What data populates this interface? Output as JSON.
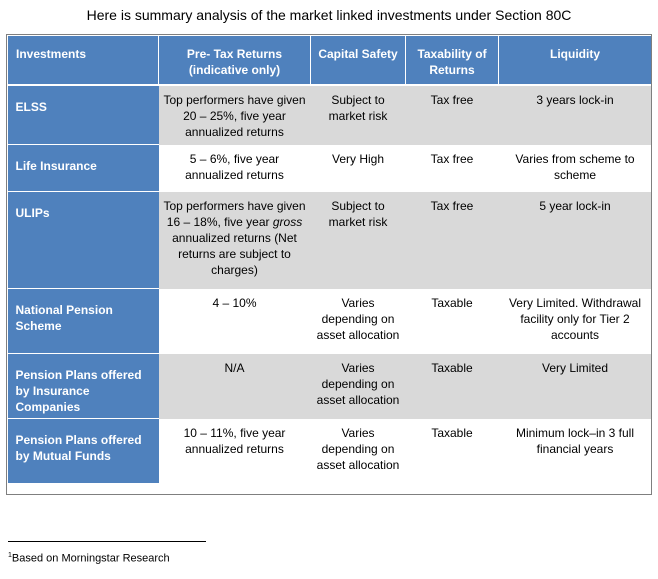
{
  "title": "Here is summary analysis of the market linked investments under Section 80C",
  "headers": {
    "investments": "Investments",
    "returns": "Pre- Tax Returns (indicative only)",
    "safety": "Capital Safety",
    "taxability": "Taxability of Returns",
    "liquidity": "Liquidity"
  },
  "rows": [
    {
      "name": "ELSS",
      "returns": "Top performers have given 20 – 25%, five year annualized returns",
      "safety": "Subject to market risk",
      "tax": "Tax free",
      "liquidity": "3 years lock-in"
    },
    {
      "name": "Life Insurance",
      "returns": "5 – 6%, five year annualized returns",
      "safety": "Very High",
      "tax": "Tax free",
      "liquidity": "Varies from scheme to scheme"
    },
    {
      "name": "ULIPs",
      "returns_a": "Top performers have given 16 – 18%, five year ",
      "returns_italic": "gross",
      "returns_b": " annualized returns (Net returns are subject to charges)",
      "safety": "Subject to market risk",
      "tax": "Tax free",
      "liquidity": "5 year lock-in"
    },
    {
      "name": "National Pension Scheme",
      "returns": "4 – 10%",
      "safety": "Varies depending on asset allocation",
      "tax": "Taxable",
      "liquidity": "Very Limited. Withdrawal facility only for Tier 2 accounts"
    },
    {
      "name": "Pension Plans offered by Insurance Companies",
      "returns": "N/A",
      "safety": "Varies depending on asset allocation",
      "tax": "Taxable",
      "liquidity": "Very Limited"
    },
    {
      "name": "Pension Plans offered by Mutual Funds",
      "returns": "10 – 11%, five year annualized returns",
      "safety": "Varies depending on asset allocation",
      "tax": "Taxable",
      "liquidity": "Minimum lock–in 3 full financial years"
    }
  ],
  "footnote": {
    "marker": "1",
    "text": "Based on Morningstar Research"
  },
  "colors": {
    "header_blue": "#4f81bd",
    "shade_gray": "#d9d9d9"
  }
}
